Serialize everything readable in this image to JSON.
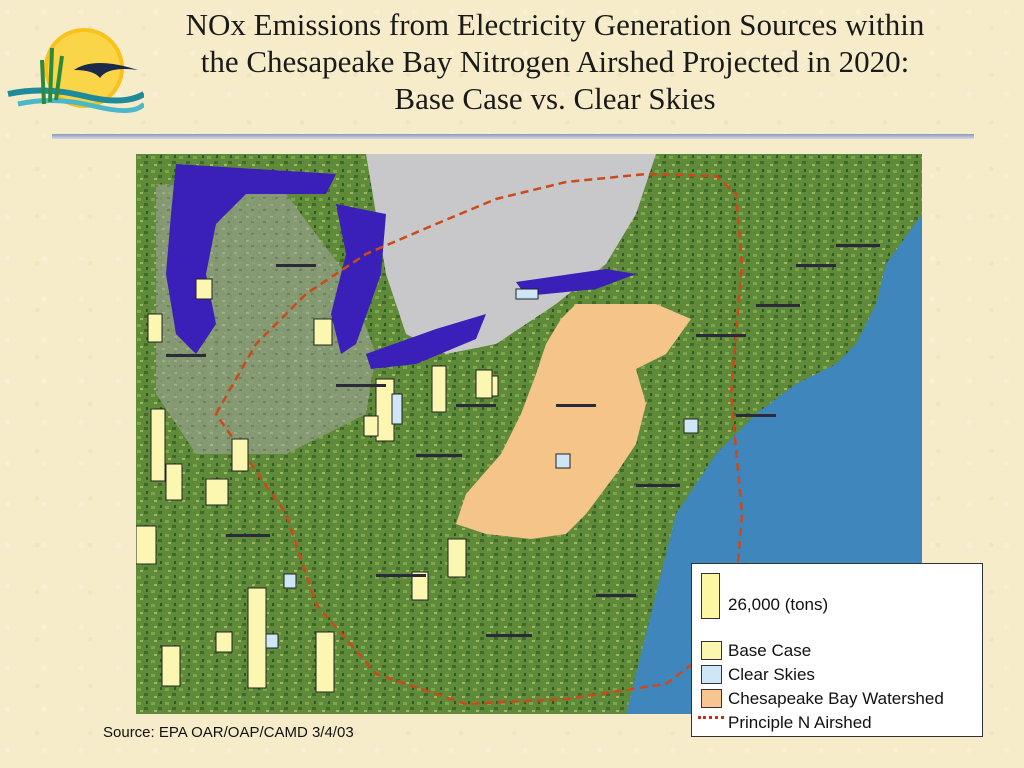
{
  "title": {
    "line1": "NOx Emissions from Electricity Generation Sources within",
    "line2": "the Chesapeake Bay Nitrogen Airshed Projected in 2020:",
    "line3": "Base Case vs. Clear Skies"
  },
  "legend": {
    "scale_label": "26,000 (tons)",
    "items": [
      {
        "label": "Base Case",
        "color": "#fcf7b0"
      },
      {
        "label": "Clear Skies",
        "color": "#cfe6f6"
      },
      {
        "label": "Chesapeake Bay Watershed",
        "color": "#f8c490"
      },
      {
        "label": "Principle N Airshed",
        "color": "#cc2a1a"
      }
    ]
  },
  "source": "Source:  EPA OAR/OAP/CAMD 3/4/03",
  "map": {
    "colors": {
      "ocean": "#3f86bd",
      "lakes": "#3a1fb8",
      "canada": "#c8c8ca",
      "land": "#5f8a3a",
      "watershed": "#f4c489",
      "airshed_boundary": "#cc4a1a"
    }
  }
}
